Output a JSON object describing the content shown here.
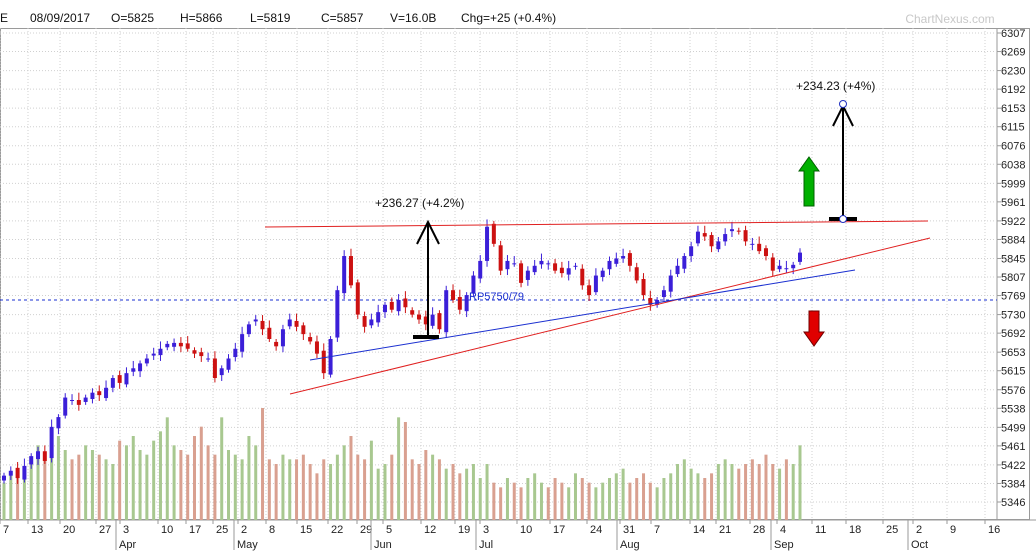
{
  "header": {
    "symbol_fragment": "E",
    "date": "08/09/2017",
    "open": "O=5825",
    "high": "H=5866",
    "low": "L=5819",
    "close": "C=5857",
    "volume": "V=16.0B",
    "change": "Chg=+25 (+0.4%)",
    "watermark": "ChartNexus.com"
  },
  "chart_data": {
    "type": "candlestick",
    "title": "",
    "ylim": [
      5310,
      6310
    ],
    "y_ticks": [
      6307,
      6269,
      6230,
      6192,
      6153,
      6115,
      6076,
      6038,
      5999,
      5961,
      5922,
      5884,
      5845,
      5807,
      5769,
      5730,
      5692,
      5653,
      5615,
      5576,
      5538,
      5499,
      5461,
      5422,
      5384,
      5346
    ],
    "x_tick_labels": [
      "7",
      "13",
      "20",
      "27",
      "3",
      "10",
      "17",
      "25",
      "2",
      "8",
      "15",
      "22",
      "29",
      "5",
      "12",
      "19",
      "3",
      "10",
      "17",
      "24",
      "31",
      "7",
      "14",
      "21",
      "28",
      "4",
      "11",
      "18",
      "25",
      "2",
      "9",
      "16"
    ],
    "month_labels": [
      "Apr",
      "May",
      "Jun",
      "Jul",
      "Aug",
      "Sep",
      "Oct"
    ],
    "first_month_label": "Apr",
    "last_date": "08/09/2017",
    "close_series": [
      5400,
      5410,
      5395,
      5420,
      5440,
      5450,
      5430,
      5500,
      5520,
      5560,
      5555,
      5545,
      5560,
      5570,
      5565,
      5580,
      5600,
      5590,
      5610,
      5620,
      5630,
      5640,
      5650,
      5660,
      5670,
      5672,
      5665,
      5660,
      5650,
      5645,
      5640,
      5600,
      5620,
      5640,
      5660,
      5690,
      5710,
      5720,
      5700,
      5680,
      5665,
      5700,
      5720,
      5705,
      5690,
      5675,
      5650,
      5610,
      5680,
      5780,
      5850,
      5790,
      5730,
      5705,
      5720,
      5735,
      5750,
      5740,
      5760,
      5745,
      5730,
      5720,
      5710,
      5730,
      5700,
      5780,
      5760,
      5740,
      5770,
      5810,
      5840,
      5910,
      5875,
      5820,
      5840,
      5835,
      5795,
      5820,
      5830,
      5840,
      5835,
      5820,
      5815,
      5825,
      5830,
      5790,
      5770,
      5810,
      5820,
      5840,
      5845,
      5850,
      5830,
      5800,
      5770,
      5750,
      5760,
      5780,
      5810,
      5830,
      5850,
      5870,
      5900,
      5890,
      5870,
      5880,
      5895,
      5905,
      5900,
      5880,
      5875,
      5860,
      5850,
      5820,
      5830,
      5825,
      5832,
      5857
    ],
    "volume_series": [
      8,
      10,
      9,
      11,
      12,
      16,
      14,
      17,
      18,
      15,
      13,
      14,
      16,
      15,
      14,
      13,
      12,
      17,
      16,
      18,
      15,
      14,
      17,
      19,
      22,
      16,
      15,
      14,
      18,
      20,
      16,
      14,
      22,
      15,
      14,
      13,
      18,
      16,
      24,
      13,
      12,
      14,
      13,
      13,
      14,
      12,
      10,
      13,
      12,
      14,
      16,
      18,
      14,
      13,
      17,
      11,
      12,
      14,
      22,
      21,
      13,
      12,
      15,
      14,
      13,
      11,
      12,
      10,
      11,
      12,
      9,
      12,
      8,
      7,
      9,
      8,
      7,
      9,
      10,
      8,
      7,
      9,
      8,
      7,
      10,
      9,
      8,
      7,
      8,
      9,
      10,
      11,
      8,
      9,
      10,
      8,
      7,
      9,
      10,
      12,
      13,
      11,
      10,
      9,
      10,
      12,
      13,
      12,
      11,
      12,
      13,
      12,
      14,
      12,
      11,
      13,
      12,
      16
    ],
    "volume_ymax": 30,
    "reference_line": 5760,
    "annotations": {
      "gain1": "+236.27 (+4.2%)",
      "gain2": "+234.23 (+4%)",
      "channel": "RP5750/79"
    },
    "colors": {
      "up": "#3b1fd8",
      "down": "#cc1111",
      "vol_up": "#a8c890",
      "vol_down": "#d9a090",
      "grid": "#d0d0d0",
      "trend_red": "#e02020",
      "trend_blue": "#1a2fd0",
      "green_arrow": "#00b000",
      "red_arrow": "#e00000"
    }
  }
}
